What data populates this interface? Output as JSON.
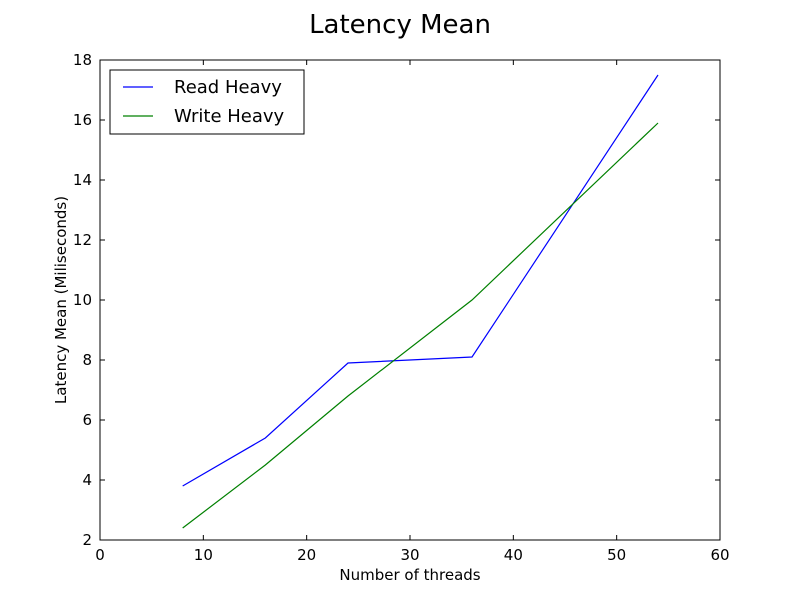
{
  "chart_data": {
    "type": "line",
    "title": "Latency Mean",
    "xlabel": "Number of threads",
    "ylabel": "Latency Mean (Miliseconds)",
    "xlim": [
      0,
      60
    ],
    "ylim": [
      2,
      18
    ],
    "xticks": [
      0,
      10,
      20,
      30,
      40,
      50,
      60
    ],
    "yticks": [
      2,
      4,
      6,
      8,
      10,
      12,
      14,
      16,
      18
    ],
    "grid": false,
    "legend_position": "top-left",
    "x": [
      8,
      16,
      24,
      36,
      54
    ],
    "series": [
      {
        "name": "Read Heavy",
        "color": "#0000ff",
        "values": [
          3.8,
          5.4,
          7.9,
          8.1,
          17.5
        ]
      },
      {
        "name": "Write Heavy",
        "color": "#008000",
        "values": [
          2.4,
          4.5,
          6.8,
          10.0,
          15.9
        ]
      }
    ]
  }
}
